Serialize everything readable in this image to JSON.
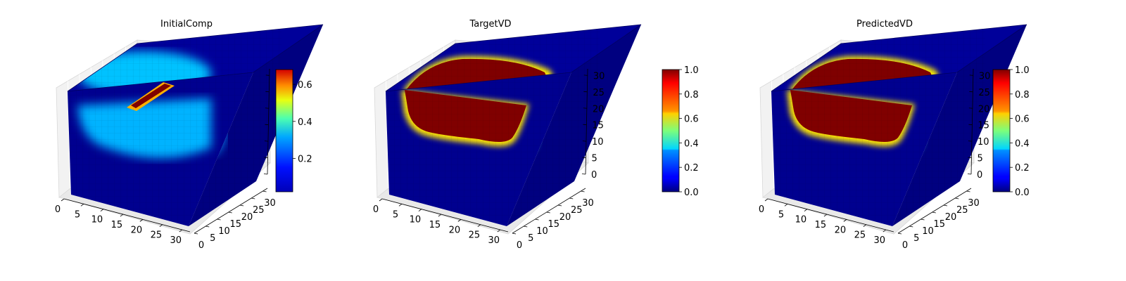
{
  "chart_data": [
    {
      "type": "heatmap",
      "subtype": "3d-voxel-cube",
      "title": "InitialComp",
      "colormap": "jet",
      "axes": {
        "x": {
          "ticks": [
            0,
            5,
            10,
            15,
            20,
            25,
            30
          ],
          "range": [
            0,
            32
          ]
        },
        "y": {
          "ticks": [
            0,
            5,
            10,
            15,
            20,
            25,
            30
          ],
          "range": [
            0,
            32
          ]
        },
        "z": {
          "ticks": [],
          "range": [
            0,
            32
          ],
          "tick_labels_shown": false
        }
      },
      "colorbar": {
        "ticks": [
          0.2,
          0.4,
          0.6
        ],
        "range": [
          0.02,
          0.68
        ]
      },
      "features": {
        "top_blob_value": 0.3,
        "center_bar_value": 0.68,
        "side_blob_value": 0.3,
        "background_value": 0.02
      }
    },
    {
      "type": "heatmap",
      "subtype": "3d-voxel-cube",
      "title": "TargetVD",
      "colormap": "jet",
      "axes": {
        "x": {
          "ticks": [
            0,
            5,
            10,
            15,
            20,
            25,
            30
          ],
          "range": [
            0,
            32
          ]
        },
        "y": {
          "ticks": [
            0,
            5,
            10,
            15,
            20,
            25,
            30
          ],
          "range": [
            0,
            32
          ]
        },
        "z": {
          "ticks": [
            0,
            5,
            10,
            15,
            20,
            25,
            30
          ],
          "range": [
            0,
            32
          ]
        }
      },
      "colorbar": {
        "ticks": [
          0.0,
          0.2,
          0.4,
          0.6,
          0.8,
          1.0
        ],
        "range": [
          0,
          1
        ]
      },
      "features": {
        "blob_value": 1.0,
        "side_ellipse_value": 1.0,
        "background_value": 0.0
      }
    },
    {
      "type": "heatmap",
      "subtype": "3d-voxel-cube",
      "title": "PredictedVD",
      "colormap": "jet",
      "axes": {
        "x": {
          "ticks": [
            0,
            5,
            10,
            15,
            20,
            25,
            30
          ],
          "range": [
            0,
            32
          ]
        },
        "y": {
          "ticks": [
            0,
            5,
            10,
            15,
            20,
            25,
            30
          ],
          "range": [
            0,
            32
          ]
        },
        "z": {
          "ticks": [
            0,
            5,
            10,
            15,
            20,
            25,
            30
          ],
          "range": [
            0,
            32
          ]
        }
      },
      "colorbar": {
        "ticks": [
          0.0,
          0.2,
          0.4,
          0.6,
          0.8,
          1.0
        ],
        "range": [
          0,
          1
        ]
      },
      "features": {
        "blob_value": 1.0,
        "side_ellipse_value": 1.0,
        "background_value": 0.0
      }
    }
  ]
}
